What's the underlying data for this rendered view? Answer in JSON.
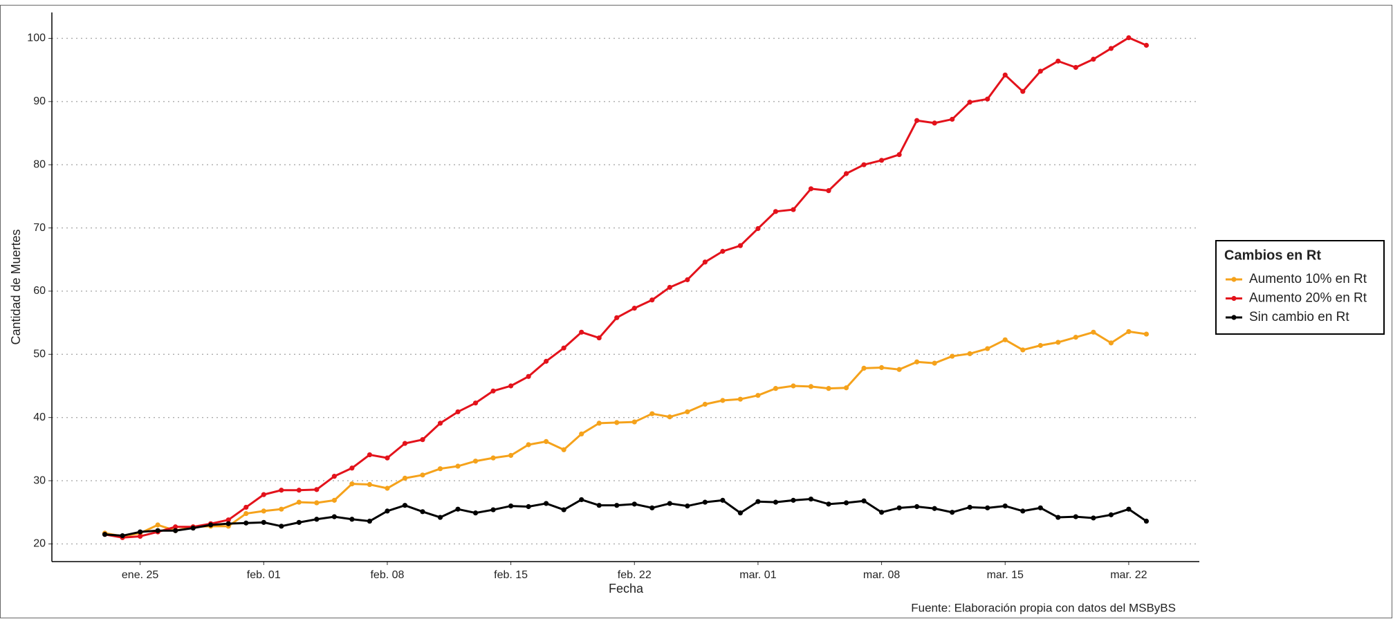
{
  "chart_data": {
    "type": "line",
    "y_label": "Cantidad de Muertes",
    "x_label": "Fecha",
    "caption": "Fuente: Elaboración propia con datos del MSByBS",
    "legend_title": "Cambios en Rt",
    "legend_position": "right",
    "grid": true,
    "x": [
      "01-23",
      "01-24",
      "01-25",
      "01-26",
      "01-27",
      "01-28",
      "01-29",
      "01-30",
      "01-31",
      "02-01",
      "02-02",
      "02-03",
      "02-04",
      "02-05",
      "02-06",
      "02-07",
      "02-08",
      "02-09",
      "02-10",
      "02-11",
      "02-12",
      "02-13",
      "02-14",
      "02-15",
      "02-16",
      "02-17",
      "02-18",
      "02-19",
      "02-20",
      "02-21",
      "02-22",
      "02-23",
      "02-24",
      "02-25",
      "02-26",
      "02-27",
      "02-28",
      "03-01",
      "03-02",
      "03-03",
      "03-04",
      "03-05",
      "03-06",
      "03-07",
      "03-08",
      "03-09",
      "03-10",
      "03-11",
      "03-12",
      "03-13",
      "03-14",
      "03-15",
      "03-16",
      "03-17",
      "03-18",
      "03-19",
      "03-20",
      "03-21",
      "03-22",
      "03-23"
    ],
    "xlim": [
      "01-20",
      "03-26"
    ],
    "xticks": [
      {
        "value": "01-25",
        "label": "ene. 25"
      },
      {
        "value": "02-01",
        "label": "feb. 01"
      },
      {
        "value": "02-08",
        "label": "feb. 08"
      },
      {
        "value": "02-15",
        "label": "feb. 15"
      },
      {
        "value": "02-22",
        "label": "feb. 22"
      },
      {
        "value": "03-01",
        "label": "mar. 01"
      },
      {
        "value": "03-08",
        "label": "mar. 08"
      },
      {
        "value": "03-15",
        "label": "mar. 15"
      },
      {
        "value": "03-22",
        "label": "mar. 22"
      }
    ],
    "ylim": [
      17.2,
      104.1
    ],
    "yticks": [
      20,
      30,
      40,
      50,
      60,
      70,
      80,
      90,
      100
    ],
    "series": [
      {
        "name": "Aumento 10% en Rt",
        "color": "#f5a21b",
        "values": [
          21.7,
          21.2,
          21.7,
          23.0,
          22.1,
          22.7,
          22.8,
          22.8,
          24.8,
          25.2,
          25.5,
          26.6,
          26.5,
          26.9,
          29.5,
          29.4,
          28.8,
          30.4,
          30.9,
          31.9,
          32.3,
          33.1,
          33.6,
          34.0,
          35.7,
          36.2,
          34.9,
          37.4,
          39.1,
          39.2,
          39.3,
          40.6,
          40.1,
          40.9,
          42.1,
          42.7,
          42.9,
          43.5,
          44.6,
          45.0,
          44.9,
          44.6,
          44.7,
          47.8,
          47.9,
          47.6,
          48.8,
          48.6,
          49.7,
          50.1,
          50.9,
          52.3,
          50.7,
          51.4,
          51.9,
          52.7,
          53.5,
          51.8,
          53.6,
          53.2
        ]
      },
      {
        "name": "Aumento 20% en Rt",
        "color": "#e3121b",
        "values": [
          21.5,
          21.0,
          21.2,
          21.9,
          22.7,
          22.7,
          23.2,
          23.8,
          25.8,
          27.8,
          28.5,
          28.5,
          28.6,
          30.7,
          32.0,
          34.1,
          33.6,
          35.9,
          36.5,
          39.1,
          40.9,
          42.3,
          44.2,
          45.0,
          46.5,
          48.9,
          51.0,
          53.5,
          52.6,
          55.8,
          57.3,
          58.6,
          60.6,
          61.8,
          64.6,
          66.3,
          67.2,
          69.9,
          72.6,
          72.9,
          76.2,
          75.9,
          78.6,
          80.0,
          80.7,
          81.6,
          87.0,
          86.6,
          87.2,
          89.9,
          90.4,
          94.2,
          91.6,
          94.8,
          96.4,
          95.4,
          96.7,
          98.4,
          100.1,
          98.9
        ]
      },
      {
        "name": "Sin cambio en Rt",
        "color": "#000000",
        "values": [
          21.5,
          21.3,
          21.9,
          22.1,
          22.1,
          22.5,
          23.0,
          23.2,
          23.3,
          23.4,
          22.8,
          23.4,
          23.9,
          24.3,
          23.9,
          23.6,
          25.2,
          26.1,
          25.1,
          24.2,
          25.5,
          24.9,
          25.4,
          26.0,
          25.9,
          26.4,
          25.4,
          27.0,
          26.1,
          26.1,
          26.3,
          25.7,
          26.4,
          26.0,
          26.6,
          26.9,
          24.9,
          26.7,
          26.6,
          26.9,
          27.1,
          26.3,
          26.5,
          26.8,
          25.0,
          25.7,
          25.9,
          25.6,
          25.0,
          25.8,
          25.7,
          26.0,
          25.2,
          25.7,
          24.2,
          24.3,
          24.1,
          24.6,
          25.5,
          23.6
        ]
      }
    ]
  }
}
